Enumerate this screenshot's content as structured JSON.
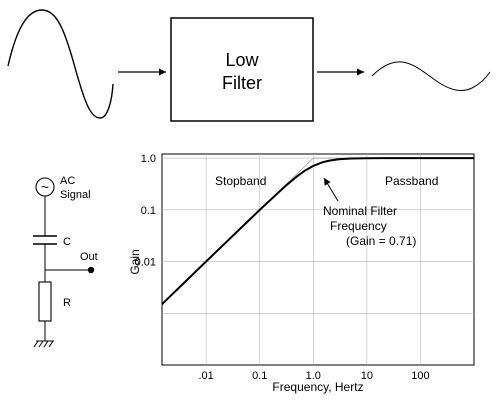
{
  "top_diagram": {
    "filter_box_line1": "Low",
    "filter_box_line2": "Filter"
  },
  "circuit": {
    "source_symbol": "~",
    "source_label_line1": "AC",
    "source_label_line2": "Signal",
    "capacitor_label": "C",
    "resistor_label": "R",
    "output_label": "Out"
  },
  "chart_data": {
    "type": "line",
    "xlabel": "Frequency, Hertz",
    "ylabel": "Gain",
    "x_scale": "log",
    "y_scale": "log",
    "xlim": [
      0.0015,
      1000
    ],
    "ylim": [
      0.0001,
      1.2
    ],
    "x_ticks": [
      {
        "value": 0.01,
        "label": ".01"
      },
      {
        "value": 0.1,
        "label": "0.1"
      },
      {
        "value": 1,
        "label": "1.0"
      },
      {
        "value": 10,
        "label": "10"
      },
      {
        "value": 100,
        "label": "100"
      }
    ],
    "y_ticks": [
      {
        "value": 0.01,
        "label": "0.01"
      },
      {
        "value": 0.1,
        "label": "0.1"
      },
      {
        "value": 1,
        "label": "1.0"
      }
    ],
    "grid": true,
    "series": [
      {
        "x": [
          0.0015,
          0.01,
          0.1,
          0.3,
          0.5,
          0.7,
          1,
          1.5,
          2,
          3,
          5,
          10,
          100,
          1000
        ],
        "y": [
          0.0015,
          0.01,
          0.0995,
          0.287,
          0.447,
          0.573,
          0.707,
          0.832,
          0.894,
          0.949,
          0.981,
          0.995,
          1,
          1
        ]
      }
    ],
    "annotations": {
      "stopband": "Stopband",
      "passband": "Passband",
      "nominal_line1": "Nominal Filter",
      "nominal_line2": "Frequency",
      "nominal_line3": "(Gain = 0.71)"
    }
  }
}
